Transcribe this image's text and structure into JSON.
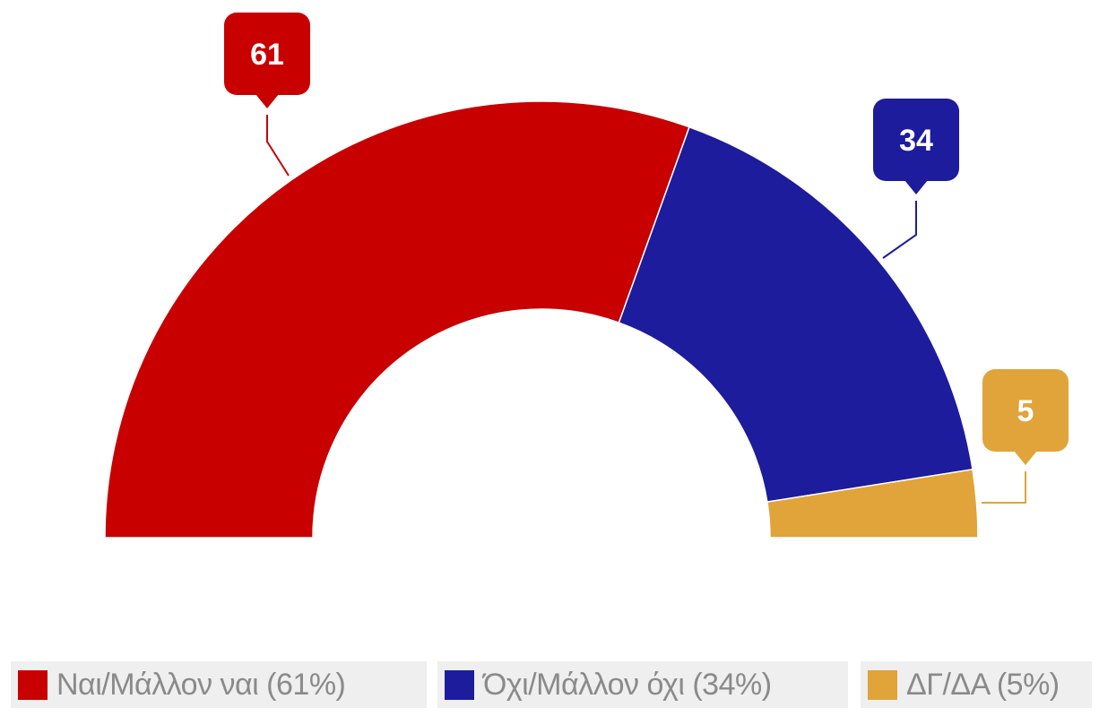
{
  "chart_data": {
    "type": "pie",
    "variant": "semi-donut",
    "title": "",
    "categories": [
      "Ναι/Μάλλον ναι",
      "Όχι/Μάλλον όχι",
      "ΔΓ/ΔΑ"
    ],
    "values": [
      61,
      34,
      5
    ],
    "data_labels": [
      "61",
      "34",
      "5"
    ],
    "colors": [
      "#c80000",
      "#1c1c9c",
      "#e0a43a"
    ],
    "legend": {
      "placement": "bottom",
      "entries": [
        "Ναι/Μάλλον ναι (61%)",
        "Όχι/Μάλλον όχι (34%)",
        "ΔΓ/ΔΑ (5%)"
      ]
    }
  }
}
